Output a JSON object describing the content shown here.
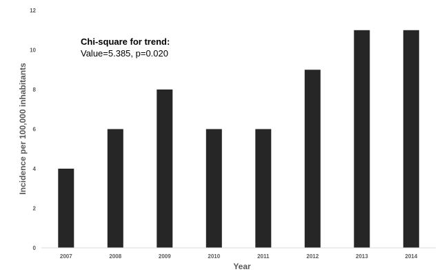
{
  "chart_data": {
    "type": "bar",
    "categories": [
      "2007",
      "2008",
      "2009",
      "2010",
      "2011",
      "2012",
      "2013",
      "2014"
    ],
    "values": [
      4,
      6,
      8,
      6,
      6,
      9,
      11,
      11
    ],
    "xlabel": "Year",
    "ylabel": "Incidence per 100,000 inhabitants",
    "ylim": [
      0,
      12
    ],
    "yticks": [
      "0",
      "2",
      "4",
      "6",
      "8",
      "10",
      "12"
    ],
    "grid": false,
    "bar_color": "#262626",
    "annotation": {
      "title": "Chi-square for trend:",
      "text": "Value=5.385, p=0.020"
    }
  }
}
